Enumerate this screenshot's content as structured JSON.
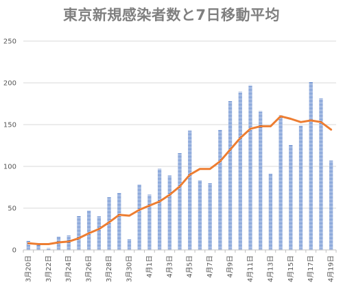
{
  "chart_data": {
    "type": "bar",
    "title": "東京新規感染者数と7日移動平均",
    "categories": [
      "3月20日",
      "3月21日",
      "3月22日",
      "3月23日",
      "3月24日",
      "3月25日",
      "3月26日",
      "3月27日",
      "3月28日",
      "3月29日",
      "3月30日",
      "3月31日",
      "4月1日",
      "4月2日",
      "4月3日",
      "4月4日",
      "4月5日",
      "4月6日",
      "4月7日",
      "4月8日",
      "4月9日",
      "4月10日",
      "4月11日",
      "4月12日",
      "4月13日",
      "4月14日",
      "4月15日",
      "4月16日",
      "4月17日",
      "4月18日",
      "4月19日"
    ],
    "x_tick_labels": [
      "3月20日",
      "3月22日",
      "3月24日",
      "3月26日",
      "3月28日",
      "3月30日",
      "4月1日",
      "4月3日",
      "4月5日",
      "4月7日",
      "4月9日",
      "4月11日",
      "4月13日",
      "4月15日",
      "4月17日",
      "4月19日"
    ],
    "series": [
      {
        "type": "bar",
        "values": [
          11,
          7,
          2,
          16,
          17,
          41,
          47,
          40,
          63,
          68,
          13,
          78,
          66,
          97,
          89,
          116,
          143,
          83,
          80,
          144,
          178,
          189,
          197,
          166,
          91,
          161,
          126,
          149,
          201,
          181,
          107
        ]
      },
      {
        "type": "line",
        "values": [
          8,
          7,
          7,
          9,
          10,
          14,
          20,
          25,
          33,
          42,
          41,
          48,
          53,
          58,
          66,
          76,
          90,
          97,
          97,
          106,
          120,
          134,
          145,
          148,
          148,
          160,
          157,
          153,
          155,
          153,
          144
        ]
      }
    ],
    "ylim": [
      0,
      250
    ],
    "yticks": [
      0,
      50,
      100,
      150,
      200,
      250
    ],
    "grid": true,
    "colors": {
      "bar": "#4472c4",
      "bar_stripe": "#ffffff",
      "line": "#ed7d31",
      "grid": "#d9d9d9",
      "axis": "#bfbfbf"
    }
  }
}
